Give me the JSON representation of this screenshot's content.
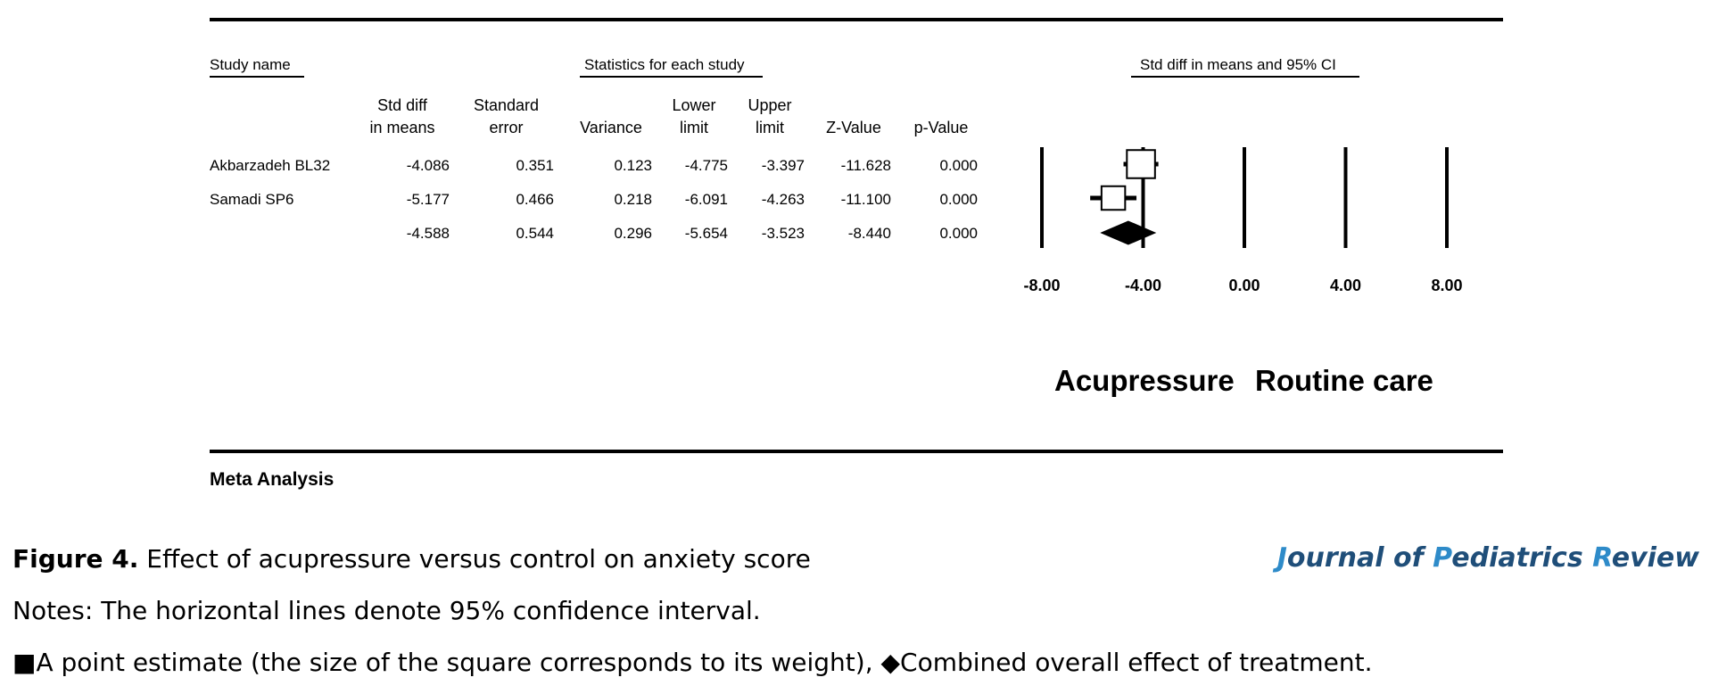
{
  "headers": {
    "study_name": "Study name",
    "statistics": "Statistics for each study",
    "ci_header": "Std diff in means and 95% CI"
  },
  "columns": [
    {
      "key": "std_diff",
      "label": "Std diff\nin means"
    },
    {
      "key": "std_error",
      "label": "Standard\nerror"
    },
    {
      "key": "variance",
      "label": "Variance"
    },
    {
      "key": "lower",
      "label": "Lower\nlimit"
    },
    {
      "key": "upper",
      "label": "Upper\nlimit"
    },
    {
      "key": "z",
      "label": "Z-Value"
    },
    {
      "key": "p",
      "label": "p-Value"
    }
  ],
  "rows": [
    {
      "name": "Akbarzadeh BL32",
      "std_diff": "-4.086",
      "std_error": "0.351",
      "variance": "0.123",
      "lower": "-4.775",
      "upper": "-3.397",
      "z": "-11.628",
      "p": "0.000"
    },
    {
      "name": "Samadi SP6",
      "std_diff": "-5.177",
      "std_error": "0.466",
      "variance": "0.218",
      "lower": "-6.091",
      "upper": "-4.263",
      "z": "-11.100",
      "p": "0.000"
    },
    {
      "name": "",
      "std_diff": "-4.588",
      "std_error": "0.544",
      "variance": "0.296",
      "lower": "-5.654",
      "upper": "-3.523",
      "z": "-8.440",
      "p": "0.000"
    }
  ],
  "chart_data": {
    "type": "forest",
    "title": "Std diff in means and 95% CI",
    "xlim": [
      -8,
      8
    ],
    "ticks": [
      -8,
      -4,
      0,
      4,
      8
    ],
    "tick_labels": [
      "-8.00",
      "-4.00",
      "0.00",
      "4.00",
      "8.00"
    ],
    "studies": [
      {
        "name": "Akbarzadeh BL32",
        "estimate": -4.086,
        "lower": -4.775,
        "upper": -3.397,
        "weight": 0.64
      },
      {
        "name": "Samadi SP6",
        "estimate": -5.177,
        "lower": -6.091,
        "upper": -4.263,
        "weight": 0.36
      }
    ],
    "overall": {
      "estimate": -4.588,
      "lower": -5.654,
      "upper": -3.523
    },
    "favours_left": "Acupressure",
    "favours_right": "Routine care"
  },
  "meta_label": "Meta Analysis",
  "caption": {
    "figure_label": "Figure 4.",
    "figure_text": " Effect of acupressure versus control on anxiety score",
    "notes": "Notes: The horizontal lines denote 95% confidence interval.",
    "legend_square": "■",
    "legend_square_text": "A point estimate (the size of the square corresponds to its weight), ",
    "legend_diamond": "◆",
    "legend_diamond_text": "Combined overall effect of treatment."
  },
  "journal": {
    "p1": "J",
    "p2": "ournal of ",
    "p3": "P",
    "p4": "ediatrics ",
    "p5": "R",
    "p6": "eview"
  }
}
